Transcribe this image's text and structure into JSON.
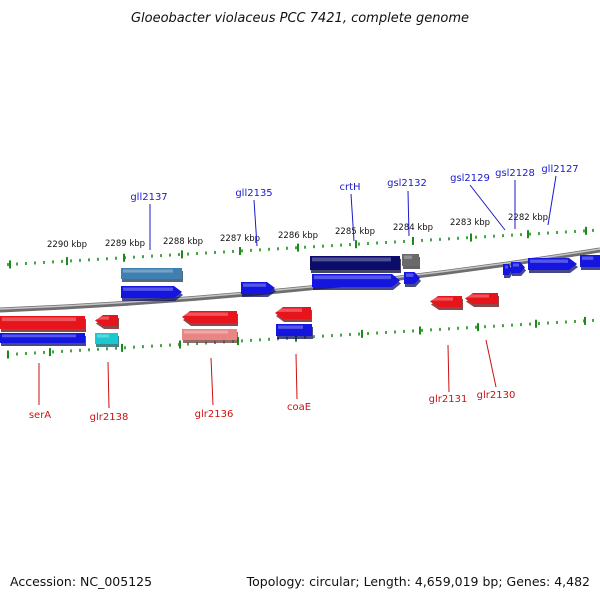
{
  "title": "Gloeobacter violaceus PCC 7421, complete genome",
  "footer": {
    "accession": "Accession: NC_005125",
    "summary": "Topology: circular; Length: 4,659,019 bp; Genes: 4,482"
  },
  "scale_labels": [
    "2290 kbp",
    "2289 kbp",
    "2288 kbp",
    "2287 kbp",
    "2286 kbp",
    "2285 kbp",
    "2284 kbp",
    "2283 kbp",
    "2282 kbp"
  ],
  "genes_up": [
    "gll2137",
    "gll2135",
    "crtH",
    "gsl2132",
    "gsl2129",
    "gsl2128",
    "gll2127"
  ],
  "genes_down": [
    "serA",
    "glr2138",
    "glr2136",
    "coaE",
    "glr2131",
    "glr2130"
  ],
  "colors": {
    "forward_label": "#1a1acc",
    "reverse_label": "#cc1111",
    "gene_blue": "#1515e0",
    "gene_red": "#e8141c",
    "gene_navy": "#0c0c6a",
    "gene_cyan": "#19c9d1",
    "gene_steel": "#3f7fb2",
    "gene_pink": "#e98585",
    "gene_gray": "#6a6a6a",
    "tick": "#1a8a1a",
    "backbone": "#8c8c8c"
  }
}
